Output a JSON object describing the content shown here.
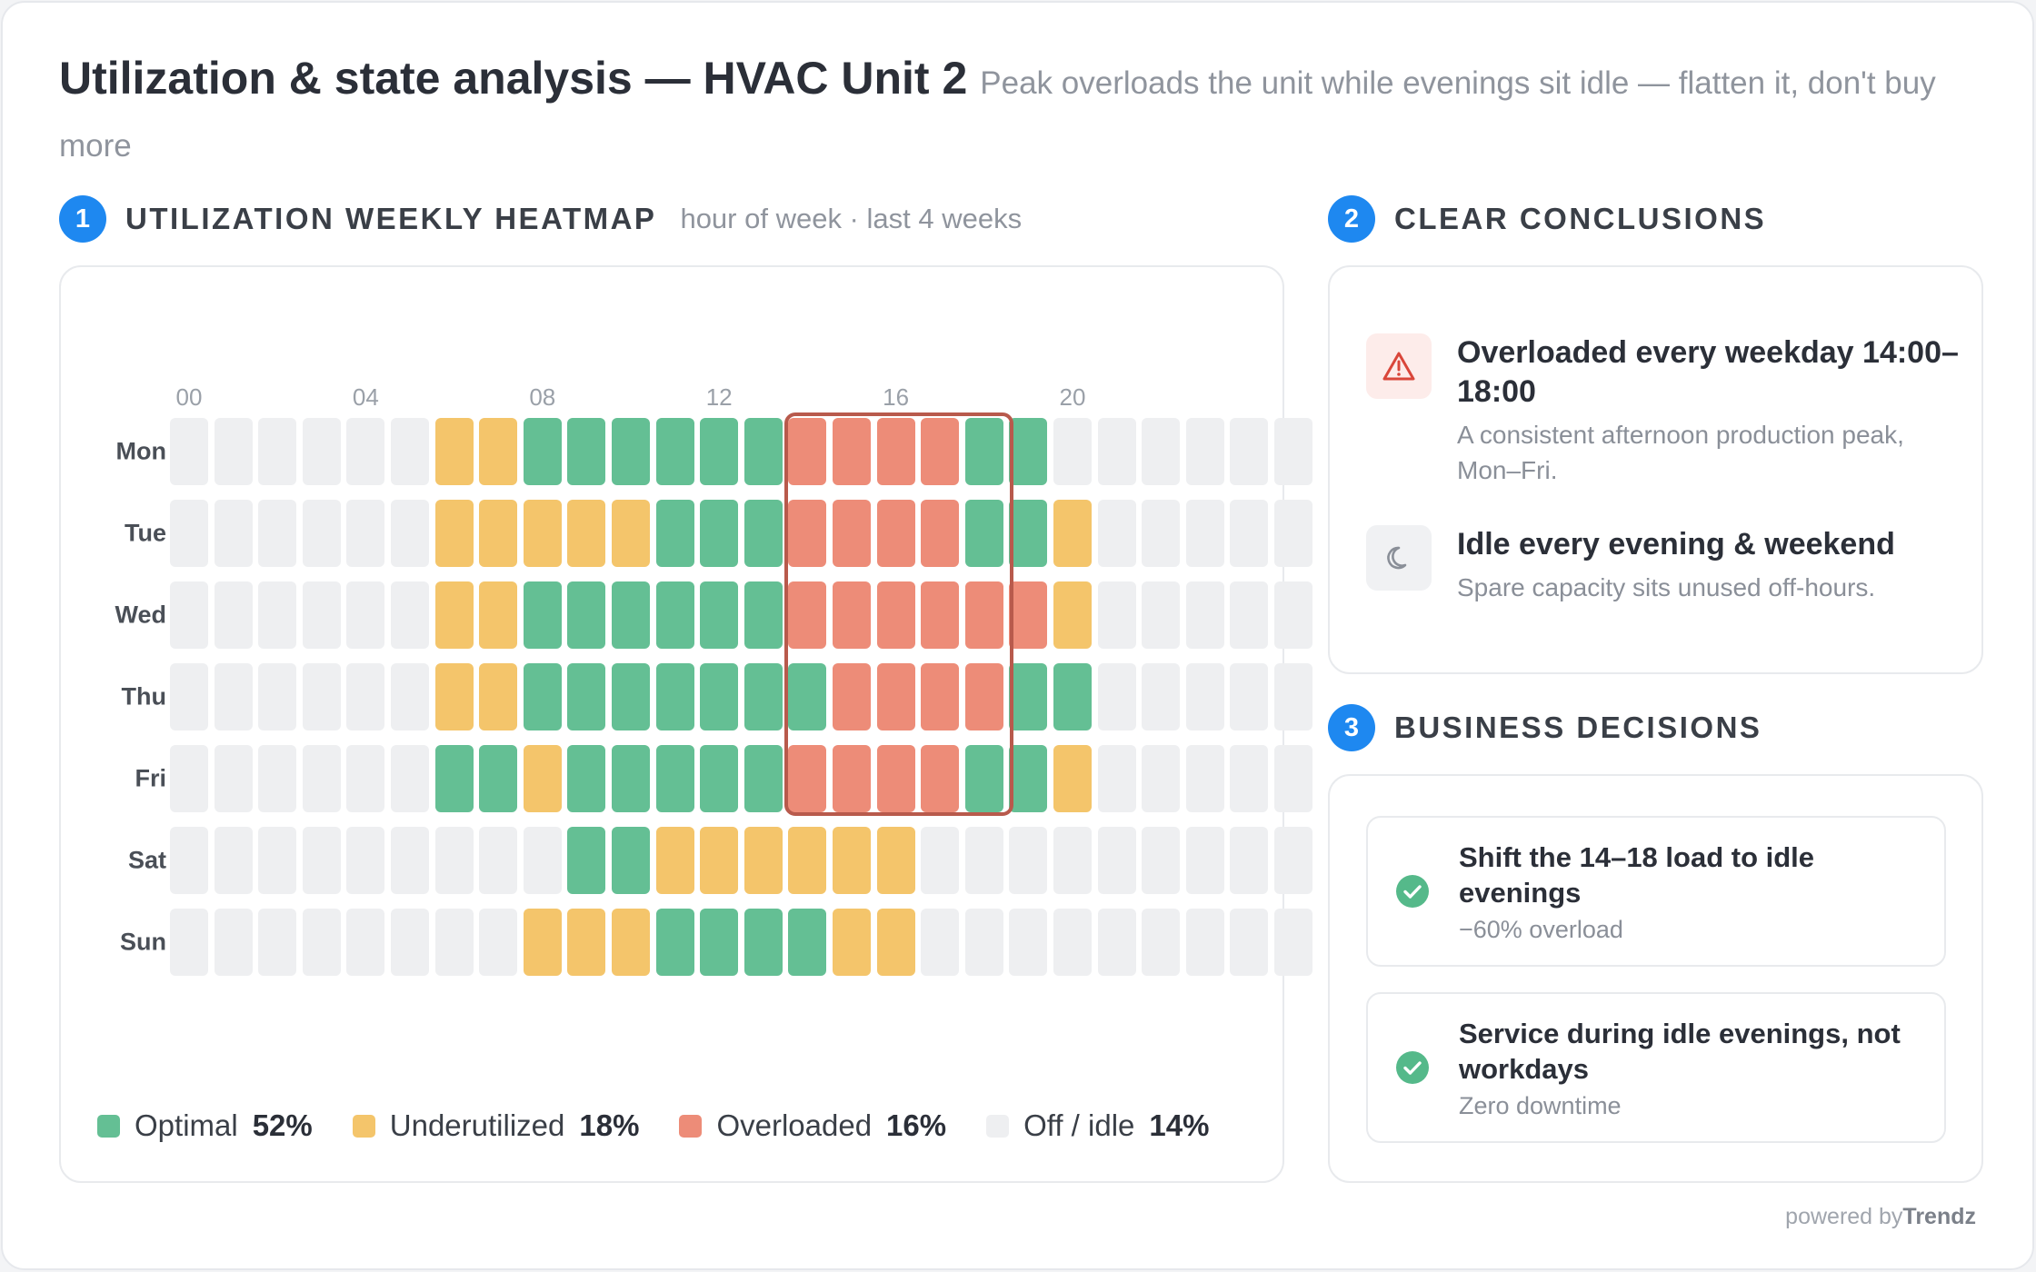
{
  "header": {
    "title": "Utilization & state analysis — HVAC Unit 2",
    "subtitle": "Peak overloads the unit while evenings sit idle — flatten it, don't buy more"
  },
  "sections": {
    "heatmap": {
      "number": "1",
      "title": "UTILIZATION WEEKLY HEATMAP",
      "note": "hour of week · last 4 weeks"
    },
    "conclusions": {
      "number": "2",
      "title": "CLEAR CONCLUSIONS"
    },
    "decisions": {
      "number": "3",
      "title": "BUSINESS DECISIONS"
    }
  },
  "chart_data": {
    "type": "heatmap",
    "x_tick_labels": [
      "00",
      "04",
      "08",
      "12",
      "16",
      "20"
    ],
    "x_tick_hours": [
      0,
      4,
      8,
      12,
      16,
      20
    ],
    "days": [
      "Mon",
      "Tue",
      "Wed",
      "Thu",
      "Fri",
      "Sat",
      "Sun"
    ],
    "states": [
      "off",
      "under",
      "optimal",
      "over"
    ],
    "grid": [
      "oooooouuggggggrrrrggoooooo",
      "oooooouuuuugggrrrrgguooooo",
      "oooooouuggggggrrrrrruooooo",
      "oooooouugggggggrrrrggooooo",
      "ooooooggugggggrrrrgguooooo",
      "ooooooooogguuuuuuooooooooo",
      "oooooooouuugggguuooooooooo"
    ],
    "highlight": {
      "days": [
        "Mon",
        "Fri"
      ],
      "hours": [
        14,
        18
      ]
    },
    "legend": [
      {
        "key": "optimal",
        "label": "Optimal",
        "value": "52%",
        "color": "#64bf94"
      },
      {
        "key": "under",
        "label": "Underutilized",
        "value": "18%",
        "color": "#f4c56b"
      },
      {
        "key": "over",
        "label": "Overloaded",
        "value": "16%",
        "color": "#ed8c78"
      },
      {
        "key": "off",
        "label": "Off / idle",
        "value": "14%",
        "color": "#eeeff1"
      }
    ]
  },
  "conclusions": [
    {
      "icon": "warning-icon",
      "title": "Overloaded every weekday 14:00–18:00",
      "desc": "A consistent afternoon production peak, Mon–Fri."
    },
    {
      "icon": "moon-icon",
      "title": "Idle every evening & weekend",
      "desc": "Spare capacity sits unused off-hours."
    }
  ],
  "decisions": [
    {
      "icon": "check-circle-icon",
      "title": "Shift the 14–18 load to idle evenings",
      "note": "−60% overload"
    },
    {
      "icon": "check-circle-icon",
      "title": "Service during idle evenings, not workdays",
      "note": "Zero downtime"
    }
  ],
  "footer": {
    "prefix": "powered by",
    "brand": "Trendz"
  },
  "colors": {
    "accent": "#1e88f0",
    "optimal": "#64bf94",
    "under": "#f4c56b",
    "over": "#ed8c78",
    "off": "#eeeff1",
    "peak_outline": "#b85a4c"
  }
}
